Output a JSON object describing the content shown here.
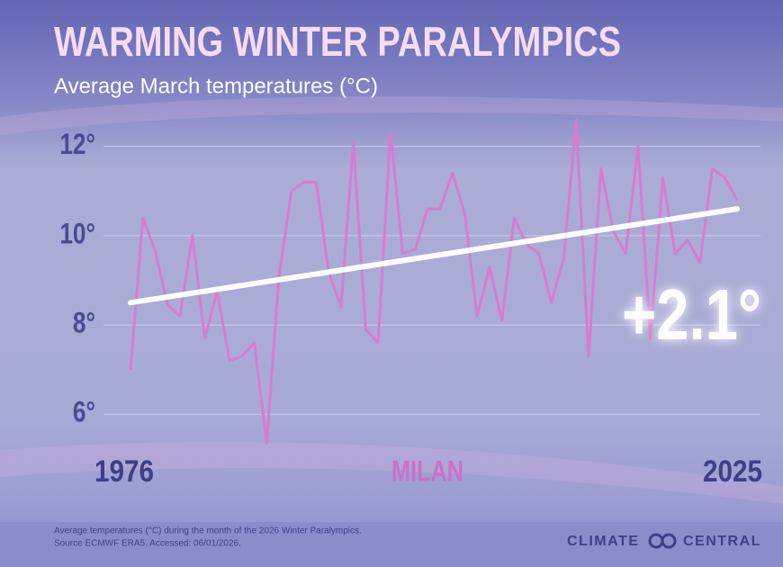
{
  "chart_data": {
    "type": "line",
    "title": "WARMING WINTER PARALYMPICS",
    "subtitle": "Average March temperatures (°C)",
    "x": [
      1976,
      1977,
      1978,
      1979,
      1980,
      1981,
      1982,
      1983,
      1984,
      1985,
      1986,
      1987,
      1988,
      1989,
      1990,
      1991,
      1992,
      1993,
      1994,
      1995,
      1996,
      1997,
      1998,
      1999,
      2000,
      2001,
      2002,
      2003,
      2004,
      2005,
      2006,
      2007,
      2008,
      2009,
      2010,
      2011,
      2012,
      2013,
      2014,
      2015,
      2016,
      2017,
      2018,
      2019,
      2020,
      2021,
      2022,
      2023,
      2024,
      2025
    ],
    "values": [
      7.0,
      10.4,
      9.65,
      8.45,
      8.2,
      10.0,
      7.7,
      8.75,
      7.2,
      7.3,
      7.6,
      5.35,
      9.1,
      11.0,
      11.2,
      11.2,
      9.2,
      8.4,
      12.1,
      7.9,
      7.6,
      12.3,
      9.6,
      9.7,
      10.6,
      10.6,
      11.4,
      10.5,
      8.2,
      9.3,
      8.1,
      10.4,
      9.8,
      9.6,
      8.5,
      9.5,
      12.6,
      7.3,
      11.5,
      10.1,
      9.6,
      12.0,
      7.7,
      11.3,
      9.6,
      9.9,
      9.4,
      11.5,
      11.3,
      10.8
    ],
    "color": "#d77ccf",
    "trend": {
      "x": [
        1976,
        2025
      ],
      "values": [
        8.5,
        10.6
      ],
      "color": "#ffffff",
      "label": "+2.1°"
    },
    "location": "MILAN",
    "xlim": [
      1976,
      2025
    ],
    "xticks": [
      1976,
      2025
    ],
    "ylim": [
      5.3,
      12.7
    ],
    "yticks": [
      {
        "value": 6,
        "label": "6°"
      },
      {
        "value": 8,
        "label": "8°"
      },
      {
        "value": 10,
        "label": "10°"
      },
      {
        "value": 12,
        "label": "12°"
      }
    ],
    "grid": true
  },
  "footer": {
    "note": "Average temperatures (°C) during the month of the 2026 Winter Paralympics.",
    "source": "Source  ECMWF ERA5. Accessed: 06/01/2026.",
    "brand_left": "CLIMATE",
    "brand_right": "CENTRAL"
  }
}
